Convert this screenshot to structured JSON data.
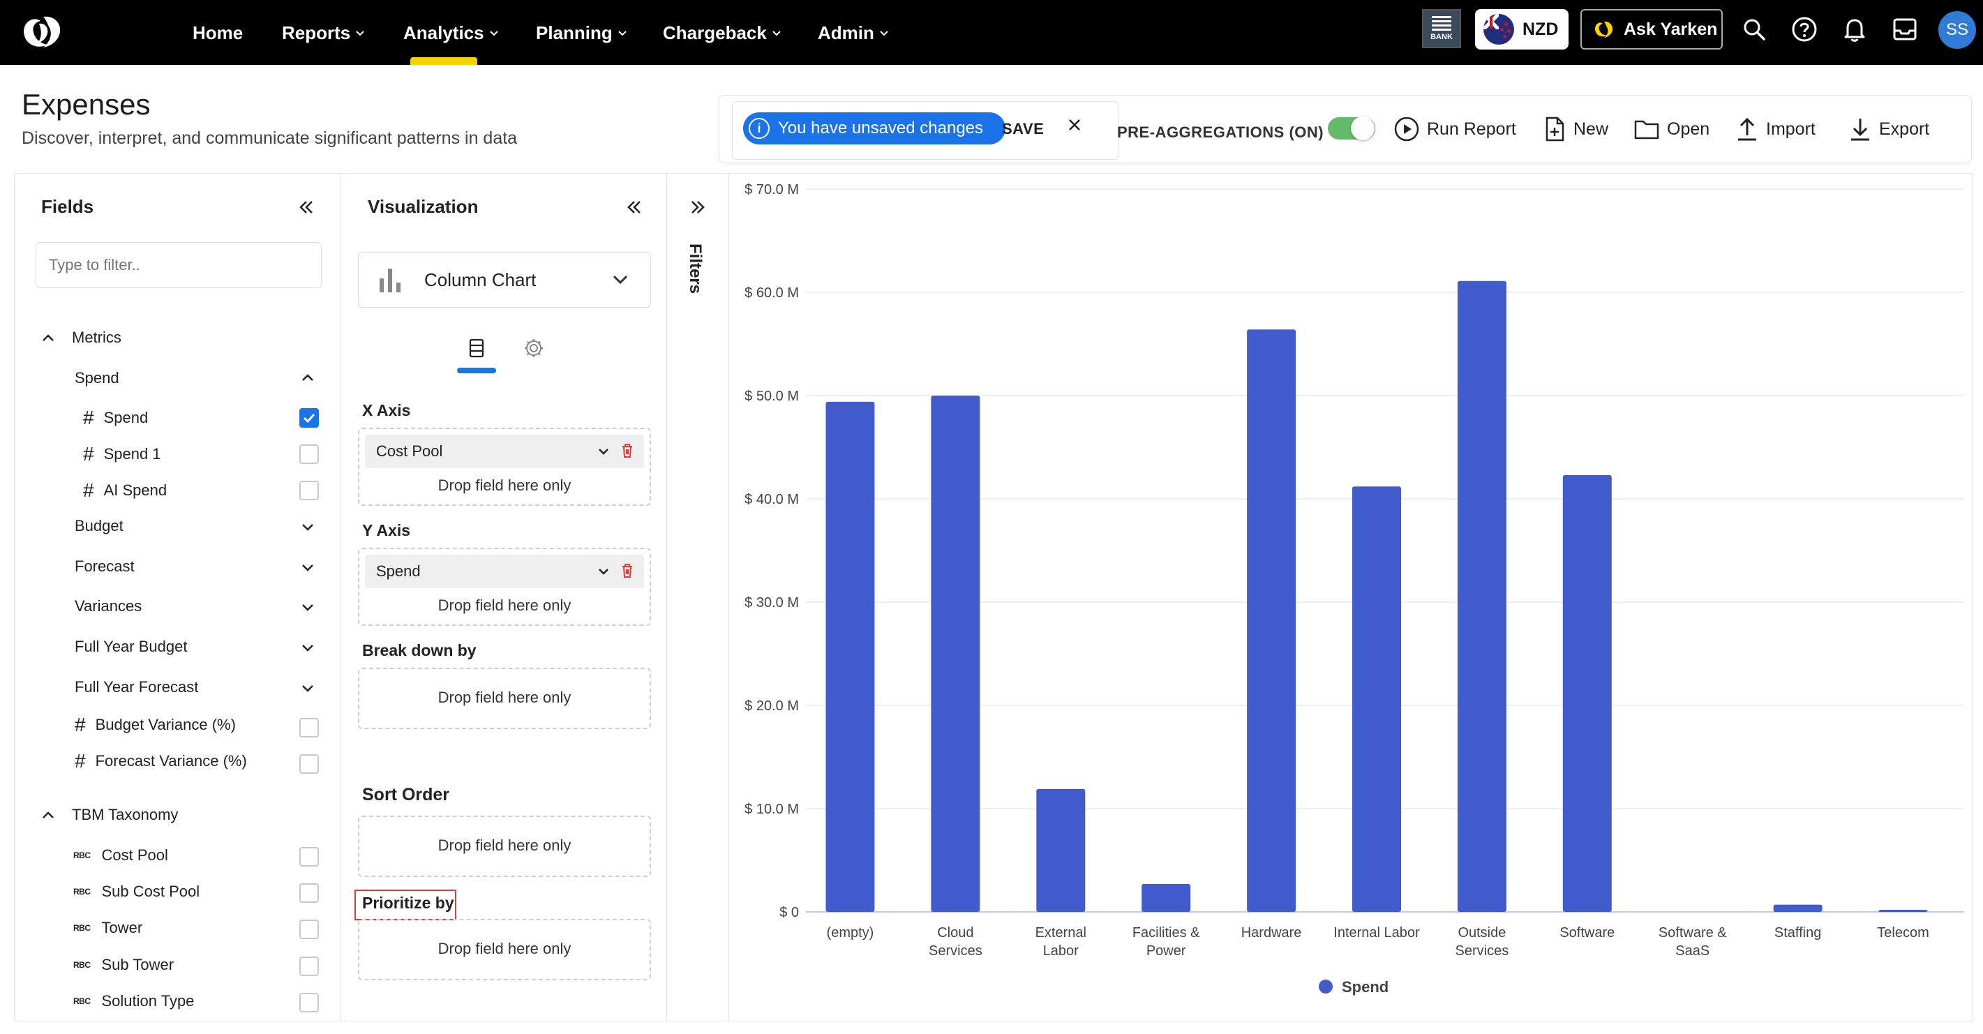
{
  "nav": {
    "items": [
      {
        "label": "Home",
        "dropdown": false
      },
      {
        "label": "Reports",
        "dropdown": true
      },
      {
        "label": "Analytics",
        "dropdown": true,
        "active": true
      },
      {
        "label": "Planning",
        "dropdown": true
      },
      {
        "label": "Chargeback",
        "dropdown": true
      },
      {
        "label": "Admin",
        "dropdown": true
      }
    ],
    "bank_label": "BANK",
    "currency": "NZD",
    "ask_label": "Ask Yarken",
    "avatar_initials": "SS",
    "active_color": "#f5d300"
  },
  "page": {
    "title": "Expenses",
    "subtitle": "Discover, interpret, and communicate significant patterns in data"
  },
  "toolbar": {
    "unsaved_text": "You have unsaved changes",
    "save_label": "SAVE",
    "preagg_label": "PRE-AGGREGATIONS (ON)",
    "preagg_on": true,
    "run_label": "Run Report",
    "new_label": "New",
    "open_label": "Open",
    "import_label": "Import",
    "export_label": "Export"
  },
  "fields": {
    "title": "Fields",
    "filter_placeholder": "Type to filter..",
    "metrics_label": "Metrics",
    "spend_group": "Spend",
    "spend_items": [
      {
        "label": "Spend",
        "checked": true
      },
      {
        "label": "Spend 1",
        "checked": false
      },
      {
        "label": "AI Spend",
        "checked": false
      }
    ],
    "groups": [
      "Budget",
      "Forecast",
      "Variances",
      "Full Year Budget",
      "Full Year Forecast"
    ],
    "pct_items": [
      {
        "label": "Budget Variance (%)",
        "checked": false
      },
      {
        "label": "Forecast Variance (%)",
        "checked": false
      }
    ],
    "taxonomy_label": "TBM Taxonomy",
    "taxonomy_items": [
      {
        "label": "Cost Pool",
        "checked": false
      },
      {
        "label": "Sub Cost Pool",
        "checked": false
      },
      {
        "label": "Tower",
        "checked": false
      },
      {
        "label": "Sub Tower",
        "checked": false
      },
      {
        "label": "Solution Type",
        "checked": false
      }
    ]
  },
  "viz": {
    "title": "Visualization",
    "chart_type": "Column Chart",
    "x_axis_label": "X Axis",
    "x_axis_field": "Cost Pool",
    "y_axis_label": "Y Axis",
    "y_axis_field": "Spend",
    "breakdown_label": "Break down by",
    "sort_label": "Sort Order",
    "prioritize_label": "Prioritize by",
    "drop_hint": "Drop field here only"
  },
  "filters": {
    "label": "Filters"
  },
  "chart_data": {
    "type": "bar",
    "categories": [
      "(empty)",
      "Cloud Services",
      "External Labor",
      "Facilities & Power",
      "Hardware",
      "Internal Labor",
      "Outside Services",
      "Software",
      "Software & SaaS",
      "Staffing",
      "Telecom"
    ],
    "category_lines": [
      [
        "(empty)"
      ],
      [
        "Cloud",
        "Services"
      ],
      [
        "External",
        "Labor"
      ],
      [
        "Facilities &",
        "Power"
      ],
      [
        "Hardware"
      ],
      [
        "Internal Labor"
      ],
      [
        "Outside",
        "Services"
      ],
      [
        "Software"
      ],
      [
        "Software &",
        "SaaS"
      ],
      [
        "Staffing"
      ],
      [
        "Telecom"
      ]
    ],
    "series": [
      {
        "name": "Spend",
        "values": [
          49.4,
          50.0,
          11.9,
          2.7,
          56.4,
          41.2,
          61.1,
          42.3,
          0,
          0.7,
          0.2
        ],
        "color": "#425cce"
      }
    ],
    "y_ticks": [
      "$ 0",
      "$ 10.0 M",
      "$ 20.0 M",
      "$ 30.0 M",
      "$ 40.0 M",
      "$ 50.0 M",
      "$ 60.0 M",
      "$ 70.0 M"
    ],
    "ylim": [
      0,
      70
    ],
    "y_unit": "M",
    "grid": true,
    "legend_position": "bottom"
  }
}
